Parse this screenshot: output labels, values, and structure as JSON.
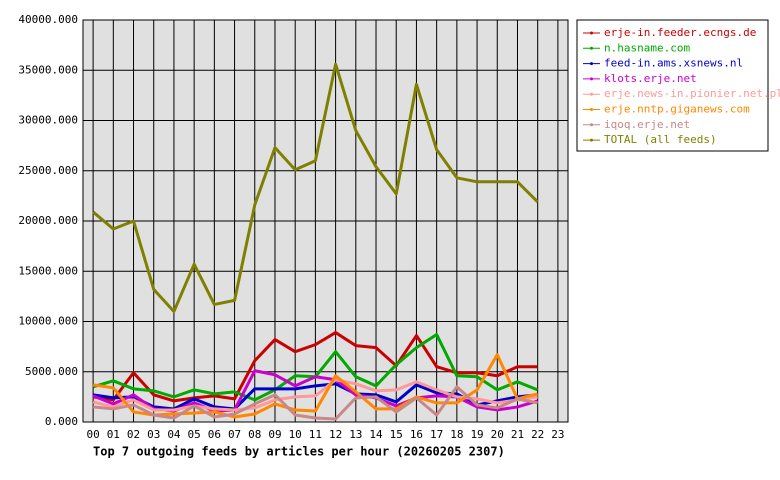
{
  "chart_data": {
    "type": "line",
    "title": "Top 7 outgoing feeds by articles per hour (20260205 2307)",
    "categories": [
      "00",
      "01",
      "02",
      "03",
      "04",
      "05",
      "06",
      "07",
      "08",
      "09",
      "10",
      "11",
      "12",
      "13",
      "14",
      "15",
      "16",
      "17",
      "18",
      "19",
      "20",
      "21",
      "22",
      "23"
    ],
    "ylim": [
      0,
      40000
    ],
    "yticks": [
      {
        "value": 0,
        "label": "0.000"
      },
      {
        "value": 5000,
        "label": "5000.000"
      },
      {
        "value": 10000,
        "label": "10000.000"
      },
      {
        "value": 15000,
        "label": "15000.000"
      },
      {
        "value": 20000,
        "label": "20000.000"
      },
      {
        "value": 25000,
        "label": "25000.000"
      },
      {
        "value": 30000,
        "label": "30000.000"
      },
      {
        "value": 35000,
        "label": "35000.000"
      },
      {
        "value": 40000,
        "label": "40000.000"
      }
    ],
    "grid": true,
    "legend": "right",
    "series": [
      {
        "name": "erje-in.feeder.ecngs.de",
        "color": "#cc0000",
        "values": [
          2500,
          2200,
          4900,
          2700,
          2100,
          2400,
          2600,
          2300,
          6100,
          8200,
          7000,
          7700,
          8900,
          7600,
          7400,
          5600,
          8600,
          5500,
          4900,
          4900,
          4600,
          5500,
          5500,
          null
        ]
      },
      {
        "name": "n.hasname.com",
        "color": "#00aa00",
        "values": [
          3500,
          4100,
          3300,
          3100,
          2500,
          3200,
          2800,
          3000,
          2200,
          3200,
          4600,
          4500,
          7000,
          4500,
          3600,
          5700,
          7400,
          8700,
          4600,
          4500,
          3200,
          4000,
          3200,
          null
        ]
      },
      {
        "name": "feed-in.ams.xsnews.nl",
        "color": "#0000cc",
        "values": [
          2700,
          2400,
          2500,
          1500,
          1300,
          2300,
          1500,
          1300,
          3300,
          3300,
          3300,
          3600,
          3800,
          2800,
          2700,
          2000,
          3700,
          2900,
          2800,
          1700,
          2100,
          2500,
          2700,
          null
        ]
      },
      {
        "name": "klots.erje.net",
        "color": "#cc00cc",
        "values": [
          2600,
          1800,
          2700,
          1300,
          1100,
          1900,
          1100,
          1200,
          5100,
          4700,
          3600,
          4500,
          4200,
          2700,
          2400,
          1600,
          2400,
          2600,
          2500,
          1500,
          1200,
          1500,
          2100,
          null
        ]
      },
      {
        "name": "erje.news-in.pionier.net.pl",
        "color": "#ff9999",
        "values": [
          2000,
          1500,
          2200,
          1200,
          1200,
          1600,
          1300,
          1200,
          1400,
          2200,
          2500,
          2600,
          4200,
          3800,
          3100,
          3200,
          4000,
          3200,
          2500,
          2300,
          1900,
          2200,
          2500,
          null
        ]
      },
      {
        "name": "erje.nntp.giganews.com",
        "color": "#ff8800",
        "values": [
          3700,
          3400,
          1000,
          700,
          800,
          900,
          1000,
          500,
          800,
          1800,
          1200,
          1100,
          4600,
          3000,
          1300,
          1300,
          2500,
          1900,
          1900,
          3200,
          6700,
          2300,
          2800,
          null
        ]
      },
      {
        "name": "iqoq.erje.net",
        "color": "#c88888",
        "values": [
          1500,
          1300,
          1700,
          700,
          400,
          1600,
          500,
          800,
          1800,
          2700,
          700,
          400,
          300,
          2400,
          2500,
          1000,
          2400,
          700,
          3500,
          1700,
          1400,
          2300,
          1900,
          null
        ]
      },
      {
        "name": "TOTAL (all feeds)",
        "color": "#808000",
        "values": [
          20900,
          19200,
          20000,
          13200,
          11000,
          15700,
          11700,
          12100,
          21600,
          27300,
          25100,
          26000,
          35600,
          29000,
          25400,
          22700,
          33600,
          27100,
          24300,
          23900,
          23900,
          23900,
          21900,
          null
        ]
      }
    ]
  }
}
